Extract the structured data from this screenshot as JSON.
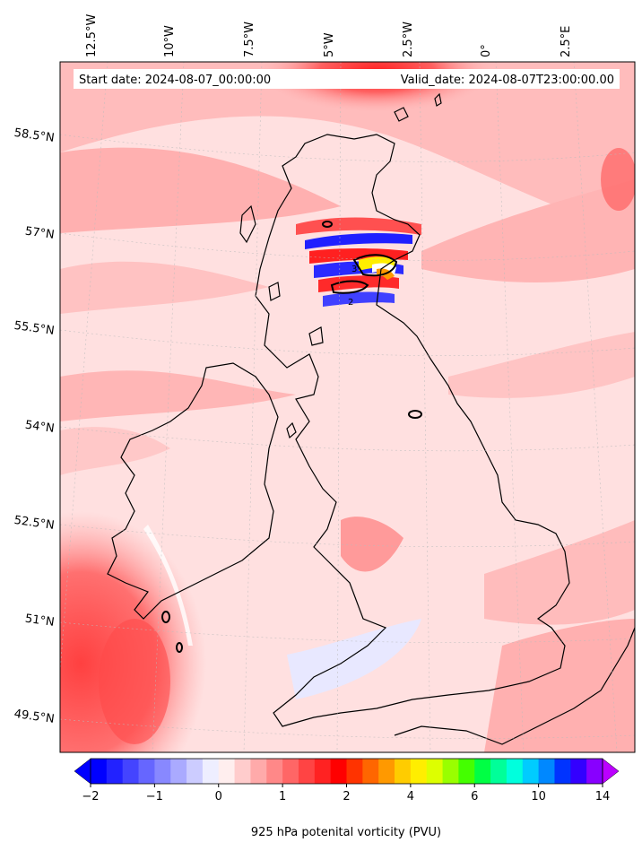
{
  "header": {
    "start_date": "Start date: 2024-08-07_00:00:00",
    "valid_date": "Valid_date: 2024-08-07T23:00:00.00"
  },
  "map": {
    "longitude_labels": [
      "12.5°W",
      "10°W",
      "7.5°W",
      "5°W",
      "2.5°W",
      "0°",
      "2.5°E"
    ],
    "latitude_labels": [
      "58.5°N",
      "57°N",
      "55.5°N",
      "54°N",
      "52.5°N",
      "51°N",
      "49.5°N"
    ],
    "features": [
      "coastline",
      "pv-contour-2",
      "pv-contour-3",
      "gridlines"
    ],
    "background_color": "#ffe4e4"
  },
  "colorbar": {
    "title": "925 hPa potenital vorticity (PVU)",
    "tick_labels": [
      "−2",
      "−1",
      "0",
      "1",
      "2",
      "4",
      "6",
      "10",
      "14"
    ],
    "colors": [
      "#0000ff",
      "#2222ff",
      "#4444ff",
      "#6666ff",
      "#8888ff",
      "#aaaaff",
      "#ccccff",
      "#eeeeff",
      "#ffeeee",
      "#ffcccc",
      "#ffaaaa",
      "#ff8888",
      "#ff6666",
      "#ff4444",
      "#ff2222",
      "#ff0000",
      "#ff3300",
      "#ff6600",
      "#ff9900",
      "#ffcc00",
      "#ffee00",
      "#ddff00",
      "#99ff00",
      "#44ff00",
      "#00ff44",
      "#00ff99",
      "#00ffdd",
      "#00ccff",
      "#0088ff",
      "#0033ff",
      "#3300ff",
      "#8800ff"
    ],
    "extend_low_color": "#0000ff",
    "extend_high_color": "#bb00ff"
  }
}
